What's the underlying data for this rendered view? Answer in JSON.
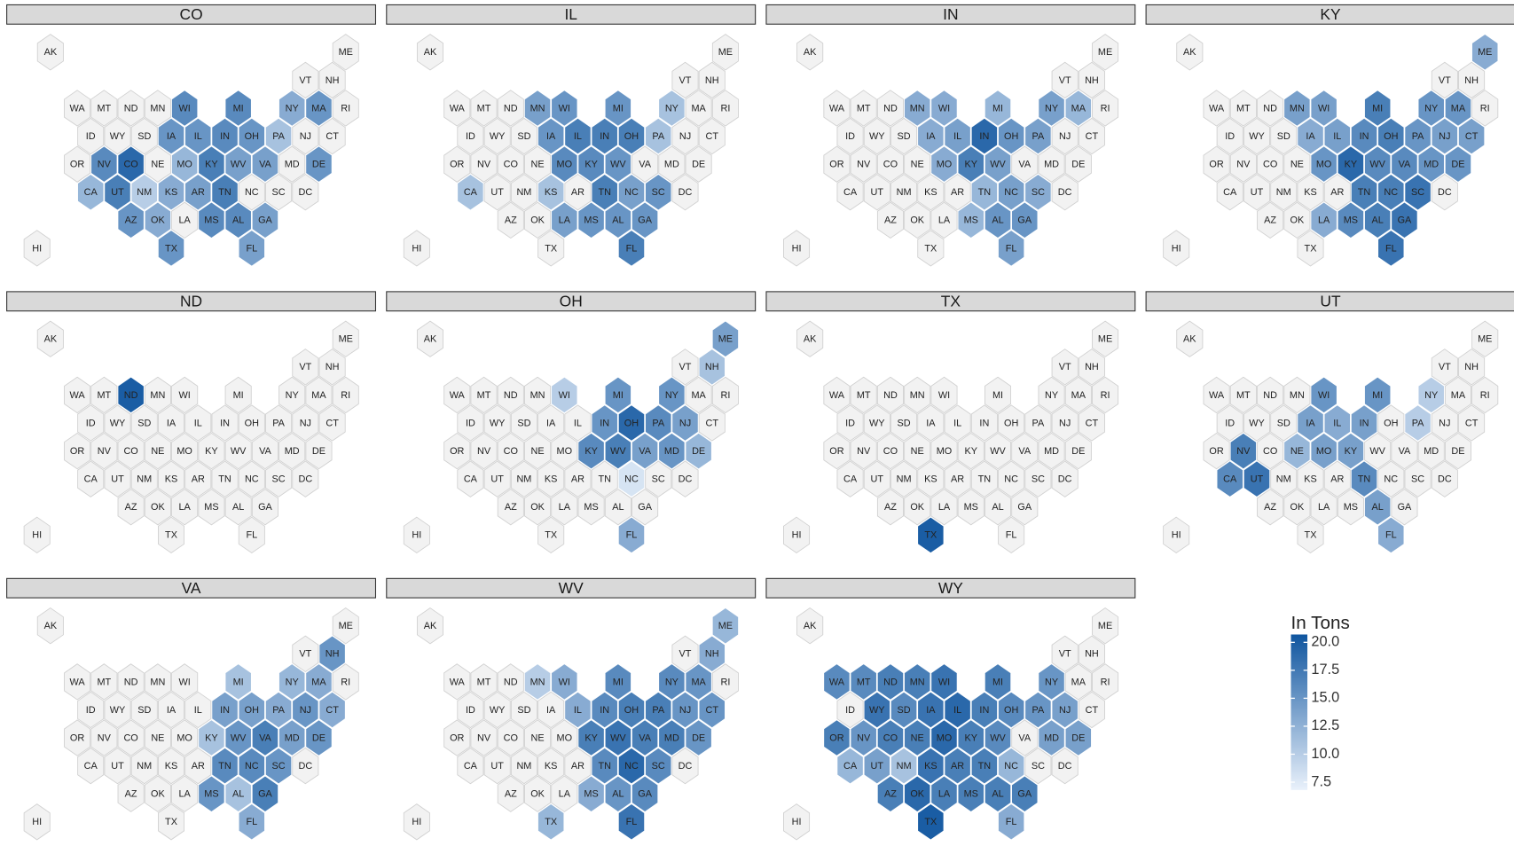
{
  "chart_data": {
    "type": "hexmap",
    "states": [
      "AK",
      "ME",
      "VT",
      "NH",
      "WA",
      "MT",
      "ND",
      "MN",
      "WI",
      "MI",
      "NY",
      "MA",
      "RI",
      "ID",
      "WY",
      "SD",
      "IA",
      "IL",
      "IN",
      "OH",
      "PA",
      "NJ",
      "CT",
      "OR",
      "NV",
      "CO",
      "NE",
      "MO",
      "KY",
      "WV",
      "VA",
      "MD",
      "DE",
      "CA",
      "UT",
      "NM",
      "KS",
      "AR",
      "TN",
      "NC",
      "SC",
      "DC",
      "AZ",
      "OK",
      "LA",
      "MS",
      "AL",
      "GA",
      "HI",
      "TX",
      "FL"
    ],
    "panels": [
      {
        "name": "CO",
        "values": [
          null,
          null,
          null,
          null,
          null,
          null,
          null,
          null,
          16,
          16,
          13,
          15,
          null,
          null,
          null,
          null,
          15,
          15,
          16,
          15,
          11,
          null,
          null,
          null,
          16,
          19,
          null,
          12,
          17,
          14,
          14,
          null,
          15,
          12,
          17,
          10,
          13,
          14,
          17,
          null,
          null,
          null,
          15,
          13,
          null,
          16,
          16,
          14,
          null,
          15,
          14
        ]
      },
      {
        "name": "IL",
        "values": [
          null,
          null,
          null,
          null,
          null,
          null,
          null,
          14,
          15,
          15,
          11,
          null,
          null,
          null,
          null,
          null,
          15,
          17,
          17,
          17,
          11,
          null,
          null,
          null,
          null,
          null,
          null,
          16,
          16,
          15,
          null,
          null,
          null,
          11,
          null,
          null,
          11,
          null,
          17,
          14,
          15,
          null,
          null,
          null,
          14,
          15,
          15,
          15,
          null,
          null,
          17
        ]
      },
      {
        "name": "IN",
        "values": [
          null,
          null,
          null,
          null,
          null,
          null,
          null,
          13,
          13,
          12,
          14,
          12,
          null,
          null,
          null,
          null,
          13,
          14,
          19,
          15,
          14,
          null,
          null,
          null,
          null,
          null,
          null,
          13,
          17,
          14,
          null,
          null,
          null,
          null,
          null,
          null,
          null,
          null,
          12,
          14,
          13,
          null,
          null,
          null,
          null,
          12,
          15,
          15,
          null,
          null,
          14
        ]
      },
      {
        "name": "KY",
        "values": [
          null,
          13,
          null,
          null,
          null,
          null,
          null,
          14,
          14,
          17,
          15,
          15,
          null,
          null,
          null,
          null,
          13,
          14,
          16,
          17,
          15,
          14,
          14,
          null,
          null,
          null,
          null,
          15,
          19,
          16,
          16,
          15,
          15,
          null,
          null,
          null,
          null,
          null,
          17,
          17,
          18,
          null,
          null,
          null,
          13,
          16,
          17,
          18,
          null,
          null,
          18
        ]
      },
      {
        "name": "ND",
        "values": [
          null,
          null,
          null,
          null,
          null,
          null,
          20,
          null,
          null,
          null,
          null,
          null,
          null,
          null,
          null,
          null,
          null,
          null,
          null,
          null,
          null,
          null,
          null,
          null,
          null,
          null,
          null,
          null,
          null,
          null,
          null,
          null,
          null,
          null,
          null,
          null,
          null,
          null,
          null,
          null,
          null,
          null,
          null,
          null,
          null,
          null,
          null,
          null,
          null,
          null,
          null
        ]
      },
      {
        "name": "OH",
        "values": [
          null,
          14,
          null,
          11,
          null,
          null,
          null,
          null,
          10,
          15,
          15,
          null,
          null,
          null,
          null,
          null,
          null,
          null,
          15,
          19,
          16,
          14,
          null,
          null,
          null,
          null,
          null,
          null,
          16,
          17,
          14,
          15,
          12,
          null,
          null,
          null,
          null,
          null,
          null,
          8,
          null,
          null,
          null,
          null,
          null,
          null,
          null,
          null,
          null,
          null,
          13
        ]
      },
      {
        "name": "TX",
        "values": [
          null,
          null,
          null,
          null,
          null,
          null,
          null,
          null,
          null,
          null,
          null,
          null,
          null,
          null,
          null,
          null,
          null,
          null,
          null,
          null,
          null,
          null,
          null,
          null,
          null,
          null,
          null,
          null,
          null,
          null,
          null,
          null,
          null,
          null,
          null,
          null,
          null,
          null,
          null,
          null,
          null,
          null,
          null,
          null,
          null,
          null,
          null,
          null,
          null,
          20,
          null
        ]
      },
      {
        "name": "UT",
        "values": [
          null,
          null,
          null,
          null,
          null,
          null,
          null,
          null,
          15,
          15,
          10,
          null,
          null,
          null,
          null,
          null,
          14,
          13,
          14,
          null,
          10,
          null,
          null,
          null,
          17,
          null,
          12,
          14,
          14,
          null,
          null,
          null,
          null,
          16,
          18,
          null,
          null,
          null,
          16,
          null,
          null,
          null,
          null,
          null,
          null,
          null,
          14,
          null,
          null,
          null,
          13
        ]
      },
      {
        "name": "VA",
        "values": [
          null,
          null,
          null,
          15,
          null,
          null,
          null,
          null,
          null,
          11,
          12,
          13,
          null,
          null,
          null,
          null,
          null,
          null,
          14,
          14,
          13,
          15,
          13,
          null,
          null,
          null,
          null,
          null,
          11,
          15,
          17,
          14,
          15,
          null,
          null,
          null,
          null,
          null,
          16,
          16,
          15,
          null,
          null,
          null,
          null,
          15,
          11,
          17,
          null,
          null,
          13
        ]
      },
      {
        "name": "WV",
        "values": [
          null,
          12,
          null,
          13,
          null,
          null,
          null,
          10,
          13,
          16,
          16,
          15,
          null,
          null,
          null,
          null,
          null,
          13,
          16,
          17,
          17,
          15,
          15,
          null,
          null,
          null,
          null,
          null,
          17,
          18,
          17,
          17,
          15,
          null,
          null,
          null,
          null,
          null,
          16,
          19,
          16,
          null,
          null,
          null,
          null,
          13,
          15,
          16,
          null,
          12,
          18
        ]
      },
      {
        "name": "WY",
        "values": [
          null,
          null,
          null,
          null,
          16,
          16,
          17,
          17,
          18,
          17,
          15,
          null,
          null,
          null,
          18,
          16,
          18,
          19,
          17,
          16,
          15,
          14,
          null,
          17,
          15,
          17,
          17,
          19,
          17,
          16,
          null,
          14,
          14,
          12,
          14,
          11,
          18,
          17,
          17,
          12,
          null,
          null,
          17,
          19,
          17,
          17,
          17,
          17,
          null,
          20,
          13
        ]
      }
    ],
    "legend": {
      "title": "In Tons",
      "lim": [
        6.8,
        20.7
      ],
      "ticks": [
        7.5,
        {
          "value": 10,
          "label": "10.0"
        },
        12.5,
        {
          "value": 15,
          "label": "15.0"
        },
        17.5,
        {
          "value": 20,
          "label": "20.0"
        }
      ]
    },
    "low_color": "#e9f1fb",
    "high_color": "#0f559f",
    "empty_color": "#f2f2f2"
  }
}
